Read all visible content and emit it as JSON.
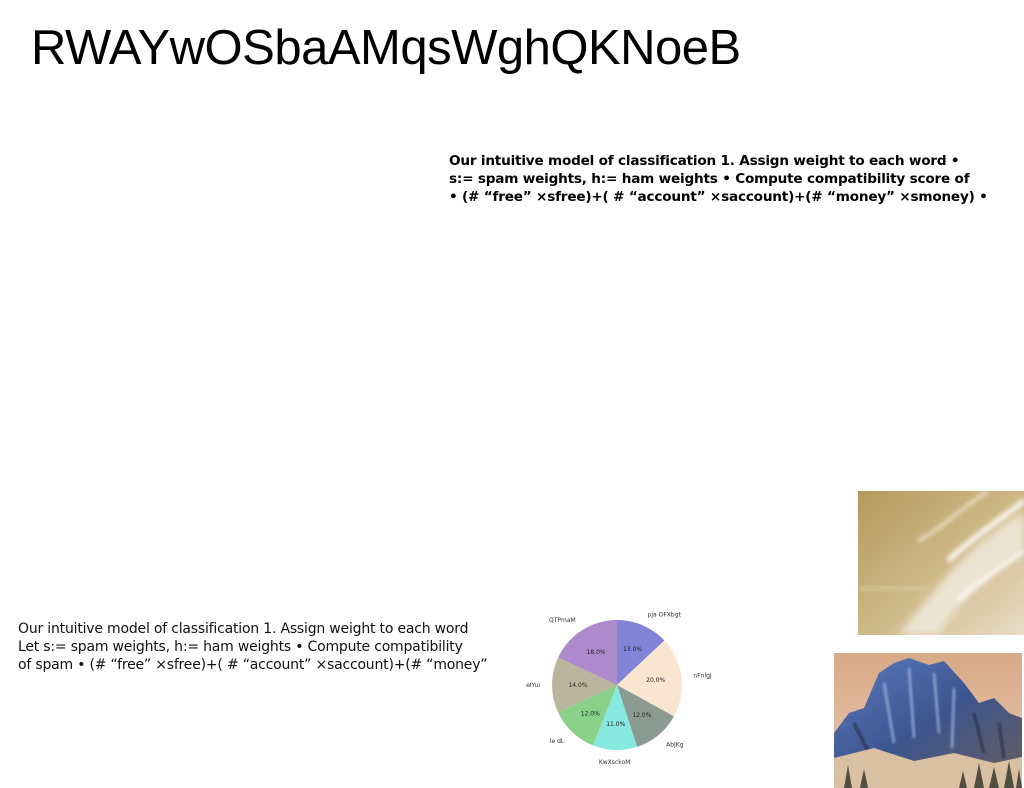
{
  "slide": {
    "title": "RWAYwOSbaAMqsWghQKNoeB",
    "bold_block": {
      "lines": [
        "Our intuitive model of classification 1. Assign weight to each word •",
        "s:= spam weights, h:= ham weights • Compute compatibility score of",
        "• (# “free” ×sfree)+( # “account” ×saccount)+(# “money” ×smoney) •"
      ]
    },
    "light_block": {
      "lines": [
        "Our intuitive model of classification 1. Assign weight to each word",
        "Let s:= spam weights, h:= ham weights • Compute compatibility",
        "of spam • (# “free” ×sfree)+( # “account” ×saccount)+(# “money”"
      ]
    },
    "images": {
      "sky": "sky-clouds-photo",
      "mountain": "rocky-mountain-photo"
    }
  },
  "chart_data": {
    "type": "pie",
    "title": "",
    "slices": [
      {
        "label": "pja OFXbgt",
        "value": 13.0,
        "pct_label": "13.0%",
        "color": "#8184d6"
      },
      {
        "label": "nFnlgJ",
        "value": 20.0,
        "pct_label": "20.0%",
        "color": "#fae5d0"
      },
      {
        "label": "AbJKg",
        "value": 12.0,
        "pct_label": "12.0%",
        "color": "#8b9b92"
      },
      {
        "label": "KwXsckoM",
        "value": 11.0,
        "pct_label": "11.0%",
        "color": "#86e8df"
      },
      {
        "label": "le dL",
        "value": 12.0,
        "pct_label": "12.0%",
        "color": "#89d188"
      },
      {
        "label": "eIYui",
        "value": 14.0,
        "pct_label": "14.0%",
        "color": "#bbb59e"
      },
      {
        "label": "QTPmaM",
        "value": 18.0,
        "pct_label": "18.0%",
        "color": "#ad8acb"
      }
    ],
    "start_angle": "top",
    "direction": "clockwise"
  }
}
